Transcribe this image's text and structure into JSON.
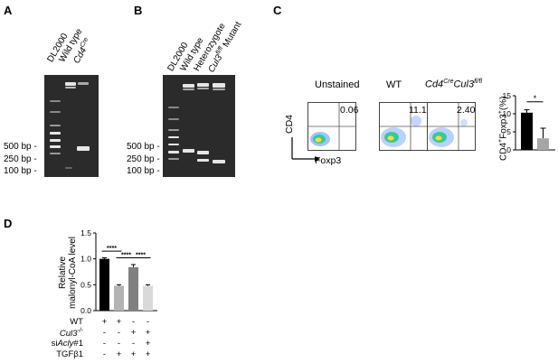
{
  "panelA": {
    "letter": "A",
    "lanes": [
      "DL2000",
      "Wild type",
      "Cd4Cre"
    ],
    "lane3_main": "Cd4",
    "lane3_sup": "Cre",
    "markers": [
      "500 bp -",
      "250 bp -",
      "100 bp -"
    ]
  },
  "panelB": {
    "letter": "B",
    "lanes": [
      "DL2000",
      "Wild type",
      "Heterozygote",
      "Cul3fl/fl Mutant"
    ],
    "lane4_main": "Cul3",
    "lane4_sup": "fl/fl",
    "lane4_tail": " Mutant",
    "markers": [
      "500 bp -",
      "250 bp -",
      "100 bp -"
    ]
  },
  "panelC": {
    "letter": "C",
    "plots": [
      {
        "title": "Unstained",
        "value": "0.06"
      },
      {
        "title": "WT",
        "value": "11.1"
      },
      {
        "title_main": "Cd4",
        "title_sup1": "Cre",
        "title_mid": "Cul3",
        "title_sup2": "fl/fl",
        "value": "2.40"
      }
    ],
    "yaxis": "CD4",
    "xaxis": "Foxp3",
    "significance": "*"
  },
  "panelD": {
    "letter": "D",
    "significance": [
      "****",
      "****",
      "****"
    ],
    "rows": [
      {
        "label": "WT",
        "signs": [
          "+",
          "+",
          "-",
          "-"
        ]
      },
      {
        "label_main": "Cul3",
        "label_sup": "-/-",
        "signs": [
          "-",
          "-",
          "+",
          "+"
        ]
      },
      {
        "label_pre": "si",
        "label_ital": "Acly",
        "label_post": "#1",
        "signs": [
          "-",
          "-",
          "-",
          "+"
        ]
      },
      {
        "label": "TGFβ1",
        "signs": [
          "-",
          "+",
          "+",
          "+"
        ]
      }
    ]
  },
  "chart_data": [
    {
      "type": "bar",
      "panel": "C",
      "categories": [
        "",
        ""
      ],
      "values": [
        10.3,
        3.2
      ],
      "errors": [
        0.8,
        2.8
      ],
      "colors": [
        "#000000",
        "#a6a6a6"
      ],
      "ylabel": "CD4+Foxp3+(%)",
      "ylabel_parts": {
        "a": "CD4",
        "a_sup": "+",
        "b": "Foxp3",
        "b_sup": "+",
        "c": "(%)"
      },
      "yticks": [
        "0",
        "5",
        "10",
        "15"
      ],
      "ylim": [
        0,
        15
      ]
    },
    {
      "type": "bar",
      "panel": "D",
      "categories": [
        "",
        "",
        "",
        ""
      ],
      "values": [
        1.0,
        0.48,
        0.84,
        0.48
      ],
      "errors": [
        0.02,
        0.02,
        0.05,
        0.02
      ],
      "colors": [
        "#000000",
        "#b3b3b3",
        "#808080",
        "#d9d9d9"
      ],
      "ylabel_line1": "Relative",
      "ylabel_line2": "malonyl-CoA level",
      "yticks": [
        "0.0",
        "0.5",
        "1.0",
        "1.5"
      ],
      "ylim": [
        0,
        1.5
      ]
    }
  ]
}
